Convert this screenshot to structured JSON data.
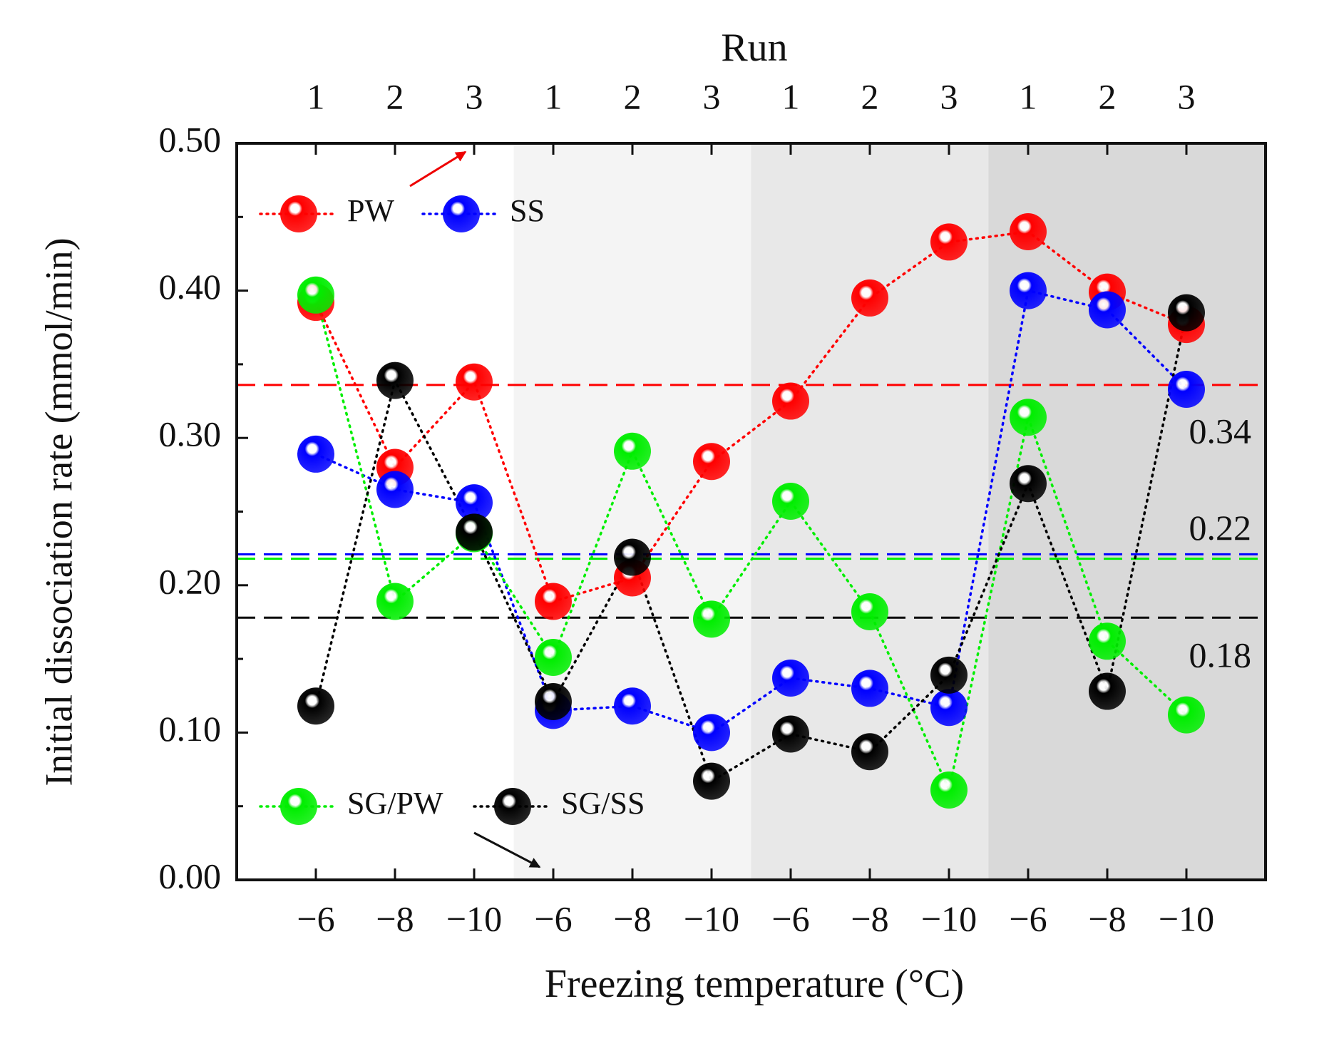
{
  "chart_data": {
    "type": "line",
    "x_label": "Freezing temperature (°C)",
    "y_label": "Initial dissociation rate (mmol/min)",
    "top_label": "Run",
    "categories": [
      "−6",
      "−8",
      "−10",
      "−6",
      "−8",
      "−10",
      "−6",
      "−8",
      "−10",
      "−6",
      "−8",
      "−10"
    ],
    "top_categories": [
      "1",
      "2",
      "3",
      "1",
      "2",
      "3",
      "1",
      "2",
      "3",
      "1",
      "2",
      "3"
    ],
    "ylim": [
      0,
      0.5
    ],
    "yticks": [
      {
        "value": 0,
        "label": "0.00"
      },
      {
        "value": 0.1,
        "label": "0.10"
      },
      {
        "value": 0.2,
        "label": "0.20"
      },
      {
        "value": 0.3,
        "label": "0.30"
      },
      {
        "value": 0.4,
        "label": "0.40"
      },
      {
        "value": 0.5,
        "label": "0.50"
      }
    ],
    "yticks_minor": [
      0.05,
      0.15,
      0.25,
      0.35,
      0.45
    ],
    "series": [
      {
        "name": "PW",
        "color": "#ff0000",
        "values": [
          0.392,
          0.28,
          0.338,
          0.189,
          0.205,
          0.284,
          0.325,
          0.395,
          0.433,
          0.44,
          0.399,
          0.377
        ]
      },
      {
        "name": "SS",
        "color": "#0000ff",
        "values": [
          0.289,
          0.265,
          0.256,
          0.115,
          0.118,
          0.1,
          0.137,
          0.13,
          0.117,
          0.4,
          0.387,
          0.333
        ]
      },
      {
        "name": "SG/PW",
        "color": "#00ee00",
        "values": [
          0.397,
          0.189,
          0.235,
          0.151,
          0.291,
          0.177,
          0.257,
          0.182,
          0.061,
          0.314,
          0.162,
          0.112
        ]
      },
      {
        "name": "SG/SS",
        "color": "#000000",
        "values": [
          0.118,
          0.339,
          0.236,
          0.121,
          0.219,
          0.067,
          0.099,
          0.087,
          0.139,
          0.269,
          0.128,
          0.385
        ]
      }
    ],
    "reference_lines": [
      {
        "value": 0.336,
        "color": "#ff0000",
        "label": "0.34"
      },
      {
        "value": 0.221,
        "color": "#0000ff",
        "label": "0.22"
      },
      {
        "value": 0.218,
        "color": "#00ee00"
      },
      {
        "value": 0.178,
        "color": "#000000",
        "label": "0.18"
      }
    ]
  }
}
